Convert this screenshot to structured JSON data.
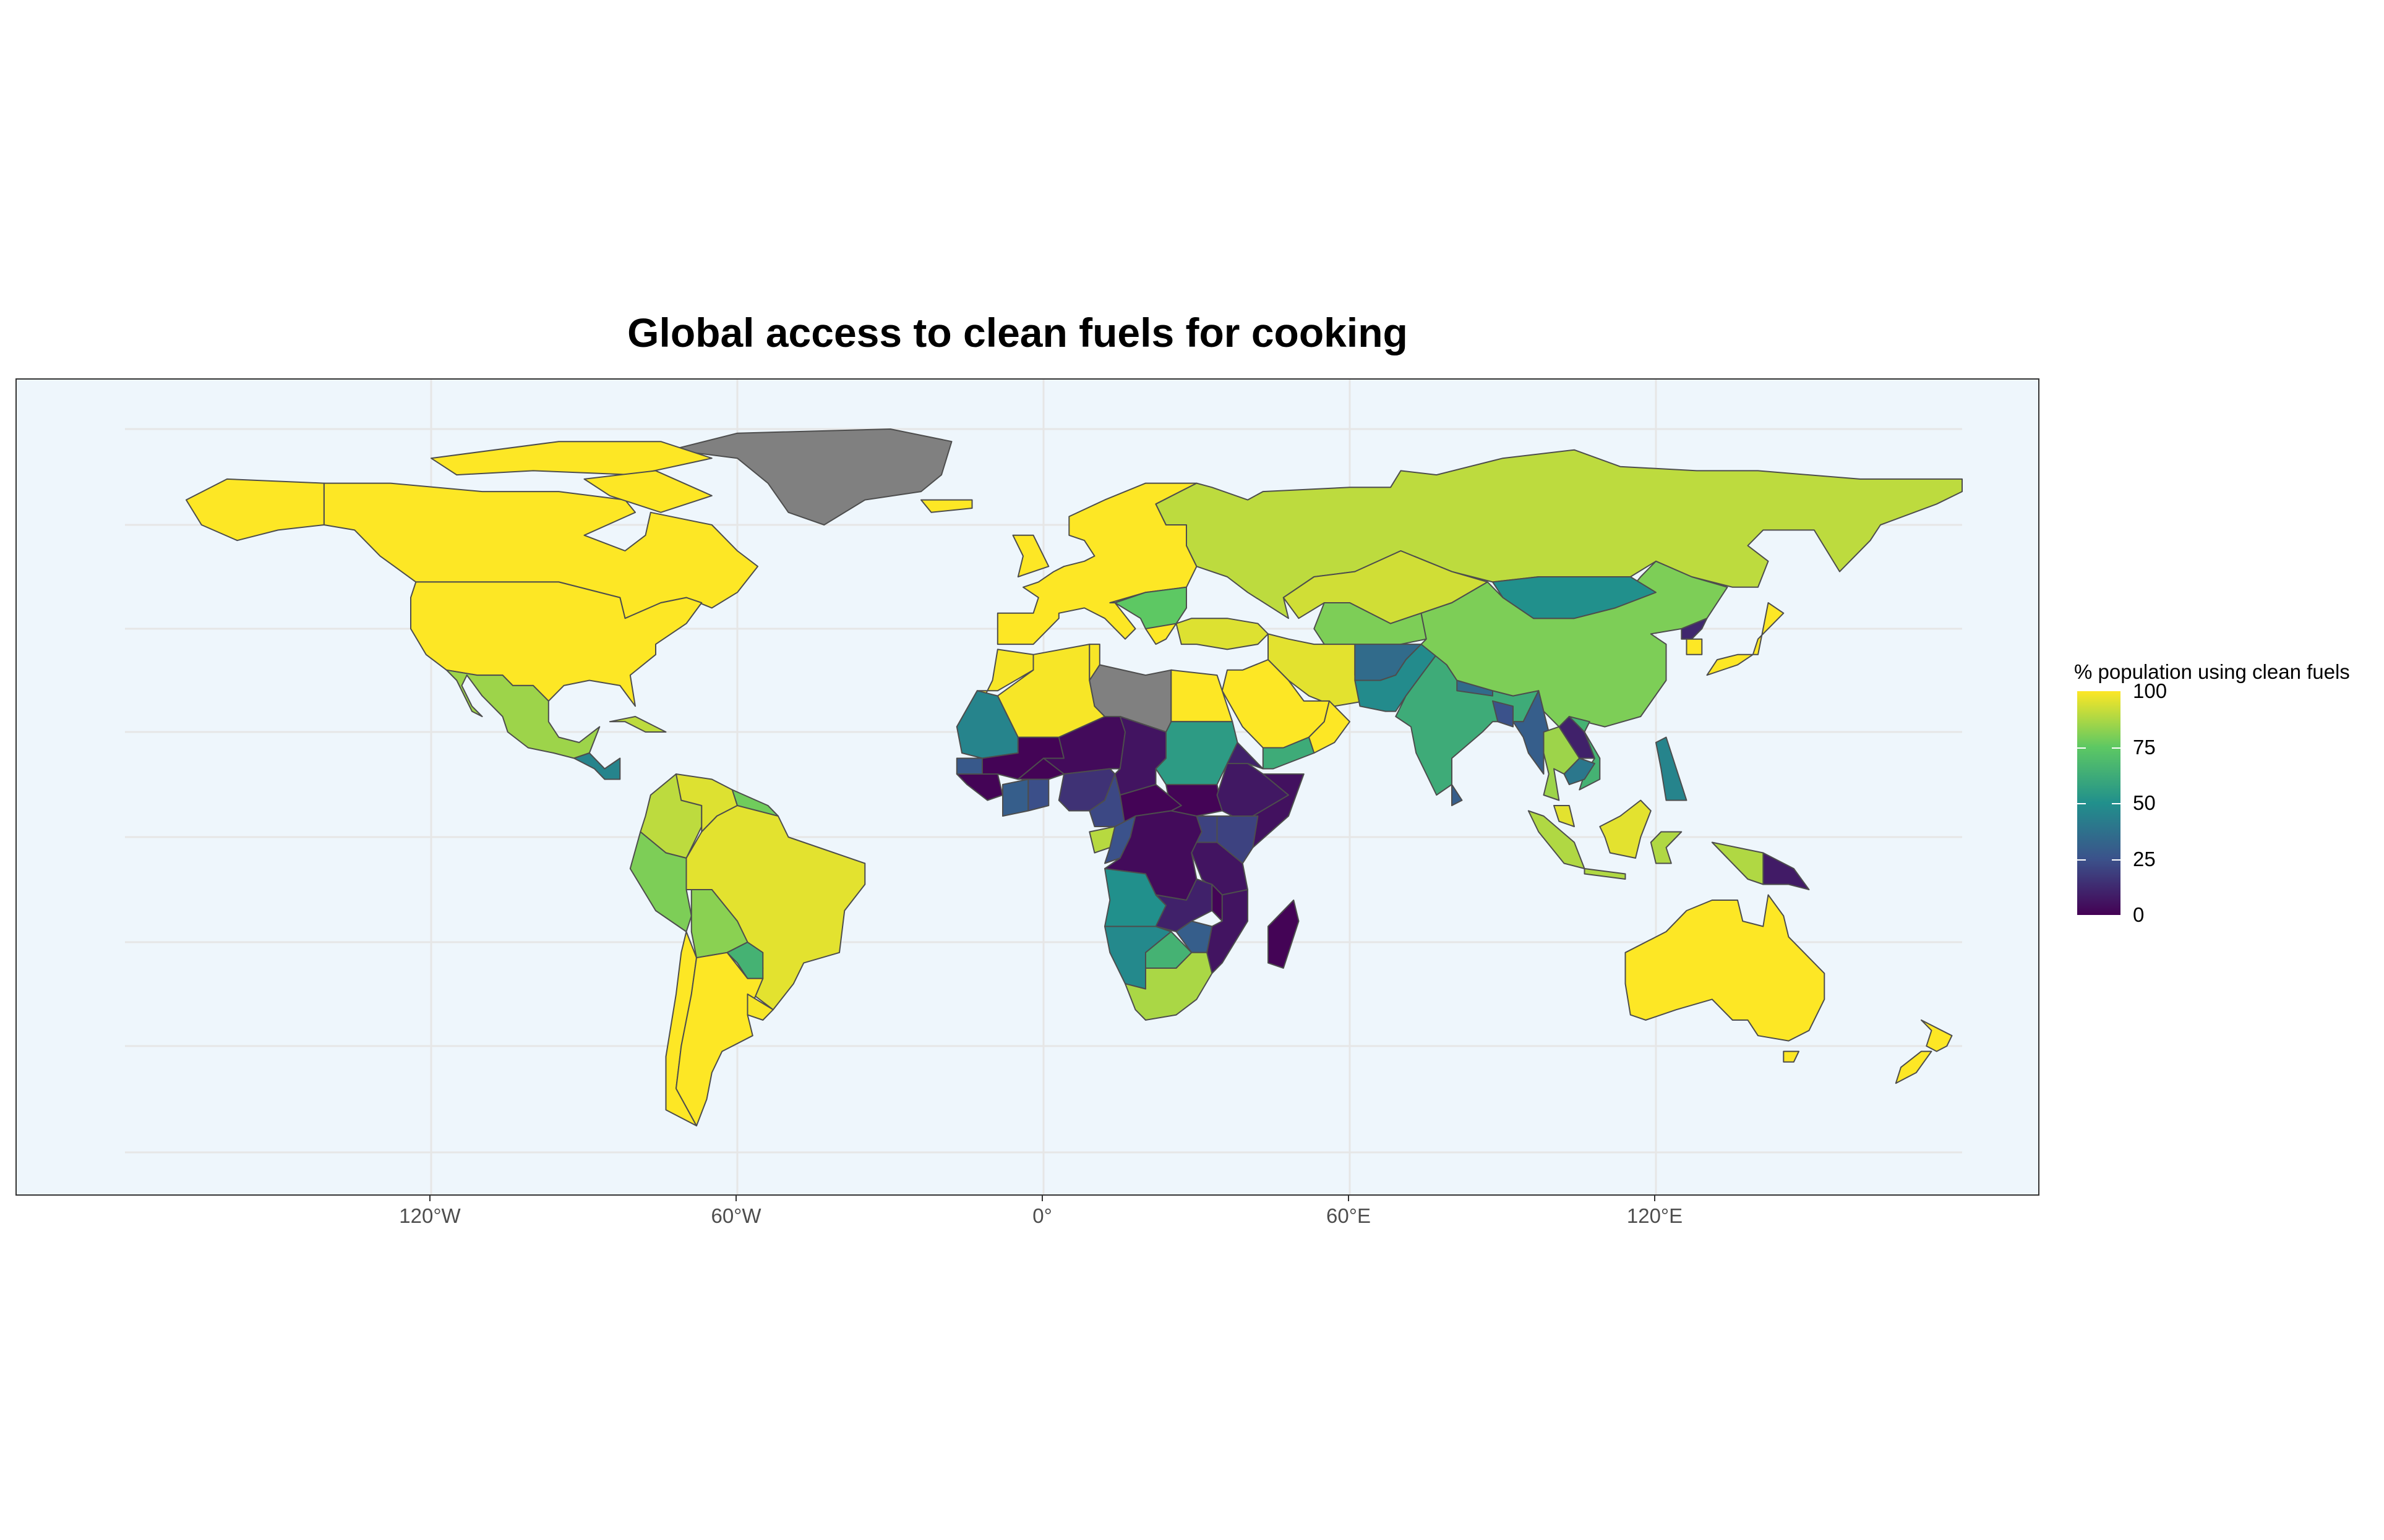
{
  "title": "Global access to clean fuels for cooking",
  "x_axis": {
    "ticks": [
      {
        "lon": -120,
        "label": "120°W"
      },
      {
        "lon": -60,
        "label": "60°W"
      },
      {
        "lon": 0,
        "label": "0°"
      },
      {
        "lon": 60,
        "label": "60°E"
      },
      {
        "lon": 120,
        "label": "120°E"
      }
    ]
  },
  "legend": {
    "title": "% population using clean fuels",
    "breaks": [
      {
        "value": 100,
        "label": "100"
      },
      {
        "value": 75,
        "label": "75"
      },
      {
        "value": 50,
        "label": "50"
      },
      {
        "value": 25,
        "label": "25"
      },
      {
        "value": 0,
        "label": "0"
      }
    ],
    "scale": "viridis",
    "limits": [
      0,
      100
    ],
    "colors": [
      "#440154",
      "#3b528b",
      "#21908c",
      "#5dc863",
      "#fde725"
    ],
    "na_color": "#808080"
  },
  "map": {
    "background_color": "#eef6fc",
    "country_border_color": "#4d4d4d",
    "regions": [
      {
        "name": "Canada",
        "value": 100
      },
      {
        "name": "United States",
        "value": 100
      },
      {
        "name": "Mexico",
        "value": 85
      },
      {
        "name": "Guatemala",
        "value": 45
      },
      {
        "name": "Cuba",
        "value": 90
      },
      {
        "name": "Venezuela",
        "value": 95
      },
      {
        "name": "Colombia",
        "value": 90
      },
      {
        "name": "Guyana",
        "value": 78
      },
      {
        "name": "Peru",
        "value": 80
      },
      {
        "name": "Brazil",
        "value": 96
      },
      {
        "name": "Bolivia",
        "value": 82
      },
      {
        "name": "Paraguay",
        "value": 65
      },
      {
        "name": "Chile",
        "value": 100
      },
      {
        "name": "Argentina",
        "value": 100
      },
      {
        "name": "Uruguay",
        "value": 99
      },
      {
        "name": "Greenland",
        "value": null
      },
      {
        "name": "Iceland",
        "value": 100
      },
      {
        "name": "Western Europe",
        "value": 100
      },
      {
        "name": "Balkans",
        "value": 75
      },
      {
        "name": "Russia",
        "value": 90
      },
      {
        "name": "Morocco",
        "value": 99
      },
      {
        "name": "Algeria",
        "value": 99
      },
      {
        "name": "Libya",
        "value": null
      },
      {
        "name": "Egypt",
        "value": 100
      },
      {
        "name": "Mauritania",
        "value": 45
      },
      {
        "name": "Mali",
        "value": 1
      },
      {
        "name": "Niger",
        "value": 3
      },
      {
        "name": "Chad",
        "value": 6
      },
      {
        "name": "Sudan",
        "value": 55
      },
      {
        "name": "Ethiopia",
        "value": 7
      },
      {
        "name": "Eritrea",
        "value": 10
      },
      {
        "name": "Somalia",
        "value": 5
      },
      {
        "name": "Yemen",
        "value": 62
      },
      {
        "name": "Saudi Arabia",
        "value": 100
      },
      {
        "name": "Oman",
        "value": 100
      },
      {
        "name": "Senegal",
        "value": 28
      },
      {
        "name": "Guinea",
        "value": 1
      },
      {
        "name": "Ivory Coast",
        "value": 30
      },
      {
        "name": "Ghana",
        "value": 24
      },
      {
        "name": "Nigeria",
        "value": 15
      },
      {
        "name": "Cameroon",
        "value": 22
      },
      {
        "name": "Gabon",
        "value": 89
      },
      {
        "name": "Congo",
        "value": 25
      },
      {
        "name": "DR Congo",
        "value": 3
      },
      {
        "name": "Central African Republic",
        "value": 1
      },
      {
        "name": "South Sudan",
        "value": 1
      },
      {
        "name": "Kenya",
        "value": 20
      },
      {
        "name": "Tanzania",
        "value": 6
      },
      {
        "name": "Angola",
        "value": 50
      },
      {
        "name": "Zambia",
        "value": 10
      },
      {
        "name": "Mozambique",
        "value": 6
      },
      {
        "name": "Malawi",
        "value": 1
      },
      {
        "name": "Zimbabwe",
        "value": 30
      },
      {
        "name": "Namibia",
        "value": 47
      },
      {
        "name": "Botswana",
        "value": 65
      },
      {
        "name": "South Africa",
        "value": 87
      },
      {
        "name": "Madagascar",
        "value": 1
      },
      {
        "name": "Turkey",
        "value": 95
      },
      {
        "name": "Iran",
        "value": 96
      },
      {
        "name": "Kazakhstan",
        "value": 93
      },
      {
        "name": "Central Asia",
        "value": 80
      },
      {
        "name": "Afghanistan",
        "value": 35
      },
      {
        "name": "Pakistan",
        "value": 48
      },
      {
        "name": "India",
        "value": 62
      },
      {
        "name": "Nepal",
        "value": 35
      },
      {
        "name": "Bangladesh",
        "value": 25
      },
      {
        "name": "Sri Lanka",
        "value": 30
      },
      {
        "name": "Mongolia",
        "value": 50
      },
      {
        "name": "China",
        "value": 80
      },
      {
        "name": "North Korea",
        "value": 12
      },
      {
        "name": "South Korea",
        "value": 100
      },
      {
        "name": "Japan",
        "value": 100
      },
      {
        "name": "Myanmar",
        "value": 30
      },
      {
        "name": "Laos",
        "value": 10
      },
      {
        "name": "Thailand",
        "value": 85
      },
      {
        "name": "Cambodia",
        "value": 40
      },
      {
        "name": "Vietnam",
        "value": 65
      },
      {
        "name": "Malaysia",
        "value": 96
      },
      {
        "name": "Indonesia",
        "value": 88
      },
      {
        "name": "Philippines",
        "value": 45
      },
      {
        "name": "Papua New Guinea",
        "value": 8
      },
      {
        "name": "Australia",
        "value": 100
      },
      {
        "name": "New Zealand",
        "value": 100
      }
    ]
  }
}
